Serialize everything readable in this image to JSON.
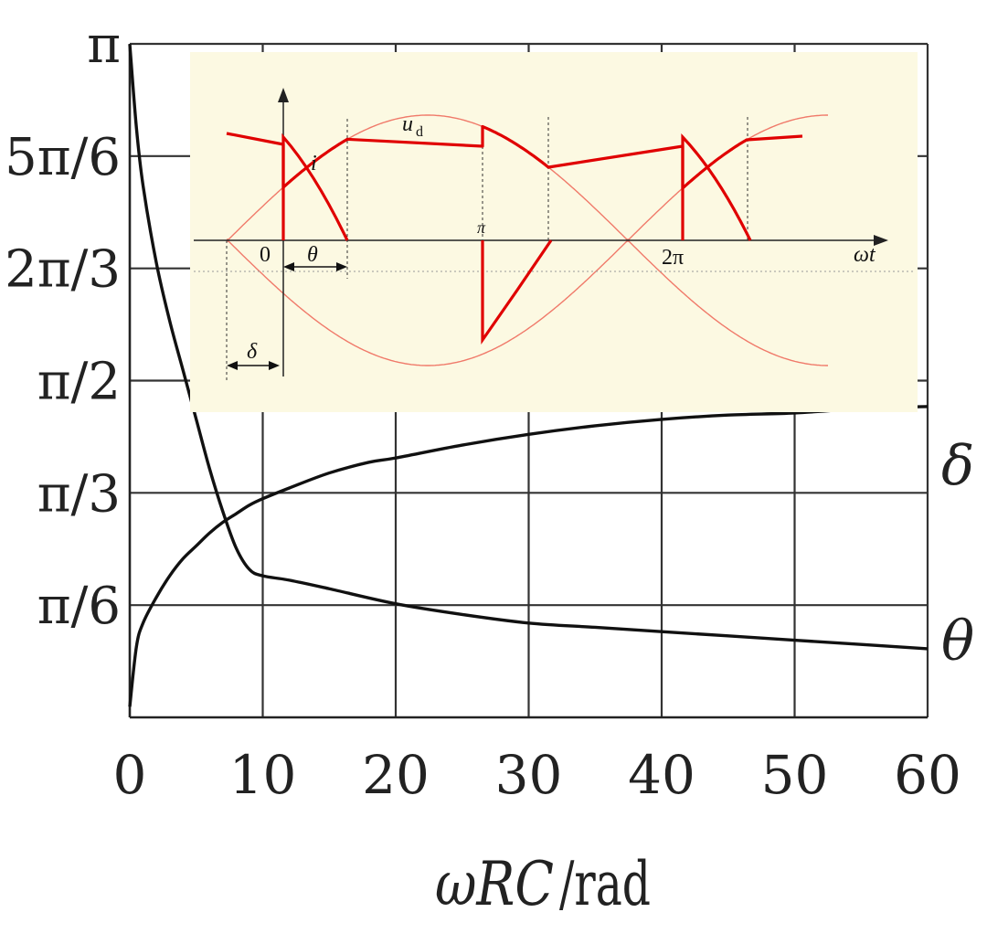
{
  "chart_data": {
    "type": "line",
    "xlabel_main": "ωRC",
    "xlabel_unit": "/rad",
    "xlim": [
      0,
      60
    ],
    "ylim": [
      0,
      3.14159
    ],
    "x_ticks": [
      0,
      10,
      20,
      30,
      40,
      50,
      60
    ],
    "x_tick_labels": [
      "0",
      "10",
      "20",
      "30",
      "40",
      "50",
      "60"
    ],
    "y_ticks": [
      3.14159,
      2.61799,
      2.0944,
      1.5708,
      1.0472,
      0.5236
    ],
    "y_tick_labels": [
      "π",
      "5π/6",
      "2π/3",
      "π/2",
      "π/3",
      "π/6"
    ],
    "grid": true,
    "series": [
      {
        "name": "δ",
        "x": [
          0,
          0.5,
          1,
          2,
          3,
          4,
          5,
          6,
          7,
          8,
          9,
          10,
          12,
          15,
          18,
          20,
          25,
          30,
          35,
          40,
          45,
          50,
          55,
          60
        ],
        "y": [
          0.05,
          0.33,
          0.44,
          0.56,
          0.66,
          0.74,
          0.8,
          0.86,
          0.91,
          0.95,
          0.99,
          1.02,
          1.07,
          1.14,
          1.19,
          1.21,
          1.27,
          1.32,
          1.36,
          1.39,
          1.41,
          1.42,
          1.44,
          1.45
        ]
      },
      {
        "name": "θ",
        "x": [
          0,
          0.5,
          1,
          2,
          3,
          4,
          5,
          6,
          7,
          8,
          9,
          10,
          12,
          15,
          20,
          25,
          30,
          35,
          40,
          45,
          50,
          55,
          60
        ],
        "y": [
          3.14,
          2.75,
          2.48,
          2.12,
          1.85,
          1.62,
          1.39,
          1.16,
          0.96,
          0.79,
          0.69,
          0.66,
          0.64,
          0.6,
          0.53,
          0.48,
          0.44,
          0.42,
          0.4,
          0.38,
          0.36,
          0.34,
          0.32
        ]
      }
    ]
  },
  "inset": {
    "labels": {
      "ud": "u",
      "ud_sub": "d",
      "i": "i",
      "zero": "0",
      "pi": "π",
      "two_pi": "2π",
      "theta": "θ",
      "delta": "δ",
      "omega_t": "ωt"
    },
    "colors": {
      "background": "#fcf9e2",
      "waveform": "#e00000",
      "thin_sine": "#f07a6a"
    }
  }
}
